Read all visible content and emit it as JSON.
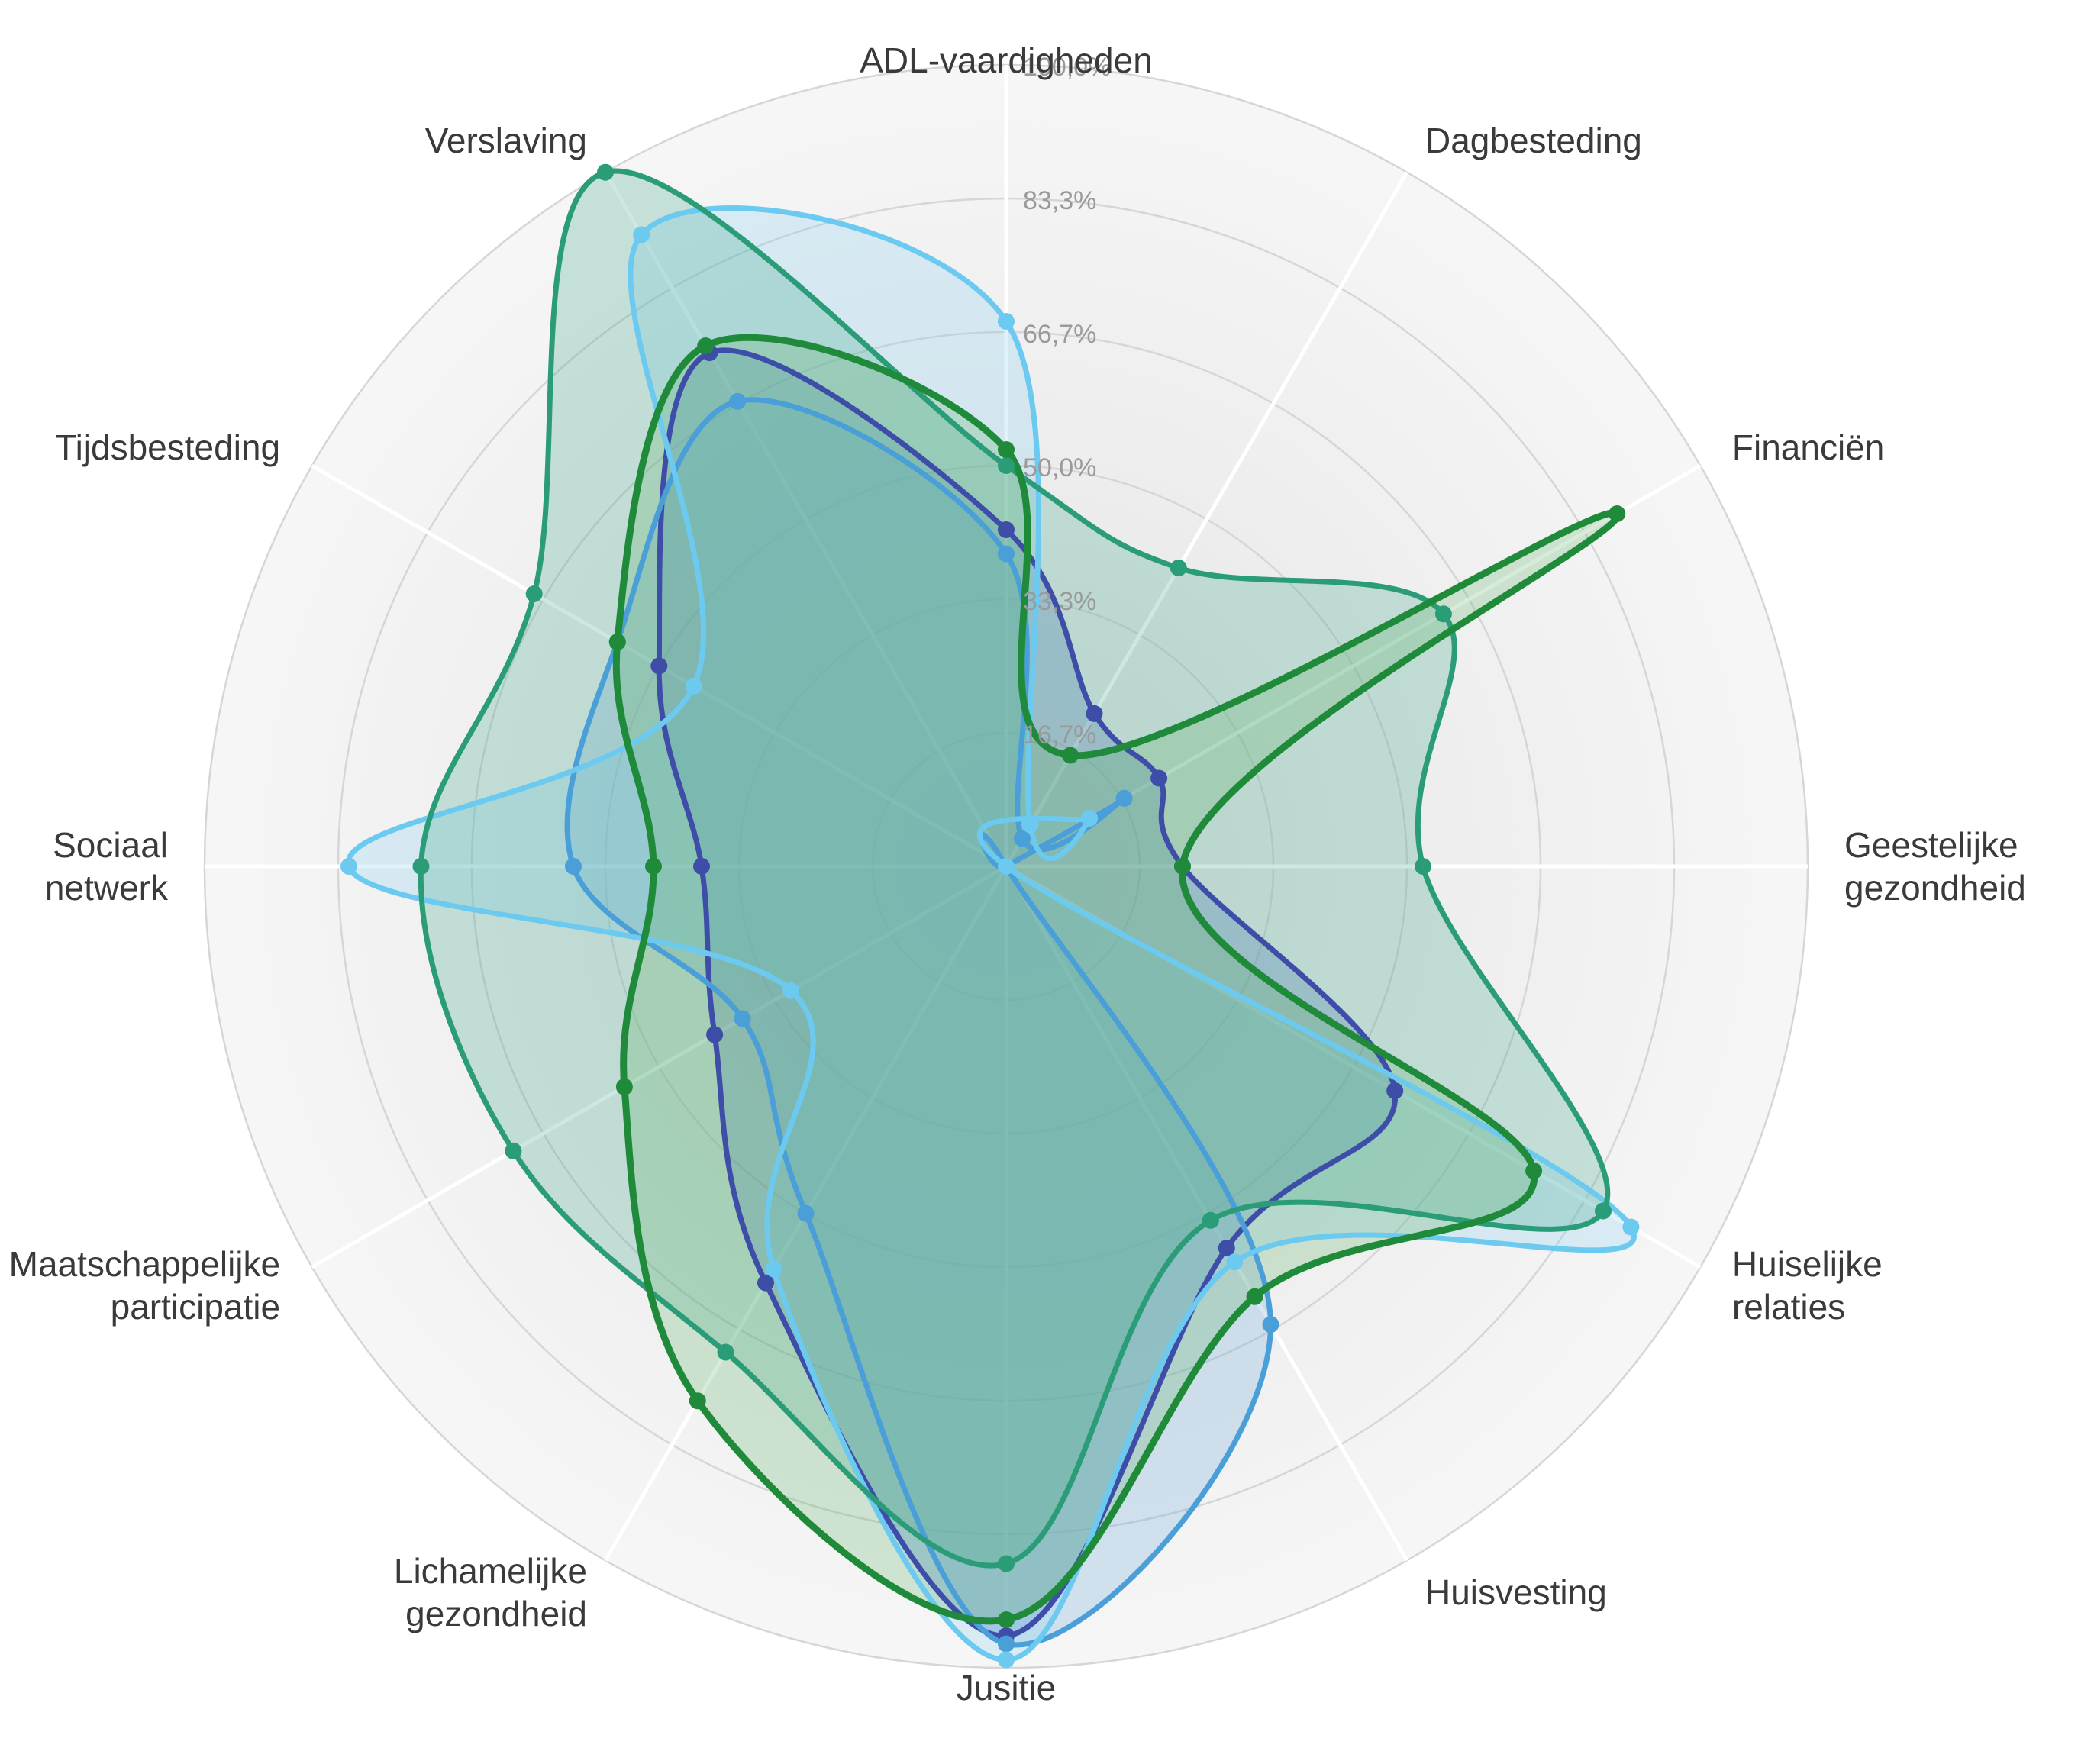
{
  "chart_data": {
    "type": "radar",
    "title": "",
    "axes": [
      "ADL-vaardigheden",
      "Dagbesteding",
      "Financiën",
      "Geestelijke gezondheid",
      "Huiselijke relaties",
      "Huisvesting",
      "Jusitie",
      "Lichamelijke gezondheid",
      "Maatschappelijke participatie",
      "Sociaal netwerk",
      "Tijdsbesteding",
      "Verslaving"
    ],
    "tick_labels": [
      "16,7%",
      "33,3%",
      "50,0%",
      "66,7%",
      "83,3%",
      "100,0%"
    ],
    "range": [
      0,
      100
    ],
    "unit": "%",
    "grid": true,
    "legend": "none",
    "series": [
      {
        "color": "#3e4ea8",
        "fill": "#3b5fb8",
        "values": [
          42,
          22,
          22,
          22,
          56,
          55,
          96,
          60,
          42,
          38,
          50,
          74
        ]
      },
      {
        "color": "#4a9fd8",
        "fill": "#6aa8d8",
        "values": [
          39,
          4,
          17,
          0,
          0,
          66,
          97,
          50,
          38,
          54,
          56,
          67
        ]
      },
      {
        "color": "#6ccaf0",
        "fill": "#86d2f2",
        "values": [
          68,
          6,
          12,
          0,
          90,
          57,
          99,
          58,
          31,
          82,
          45,
          91
        ]
      },
      {
        "color": "#2a9c78",
        "fill": "#3aa886",
        "values": [
          50,
          43,
          63,
          52,
          86,
          51,
          87,
          70,
          71,
          73,
          68,
          100
        ]
      },
      {
        "color": "#1f8a3a",
        "fill": "#5fb06a",
        "values": [
          52,
          16,
          88,
          22,
          76,
          62,
          94,
          77,
          55,
          44,
          56,
          75
        ]
      }
    ]
  }
}
